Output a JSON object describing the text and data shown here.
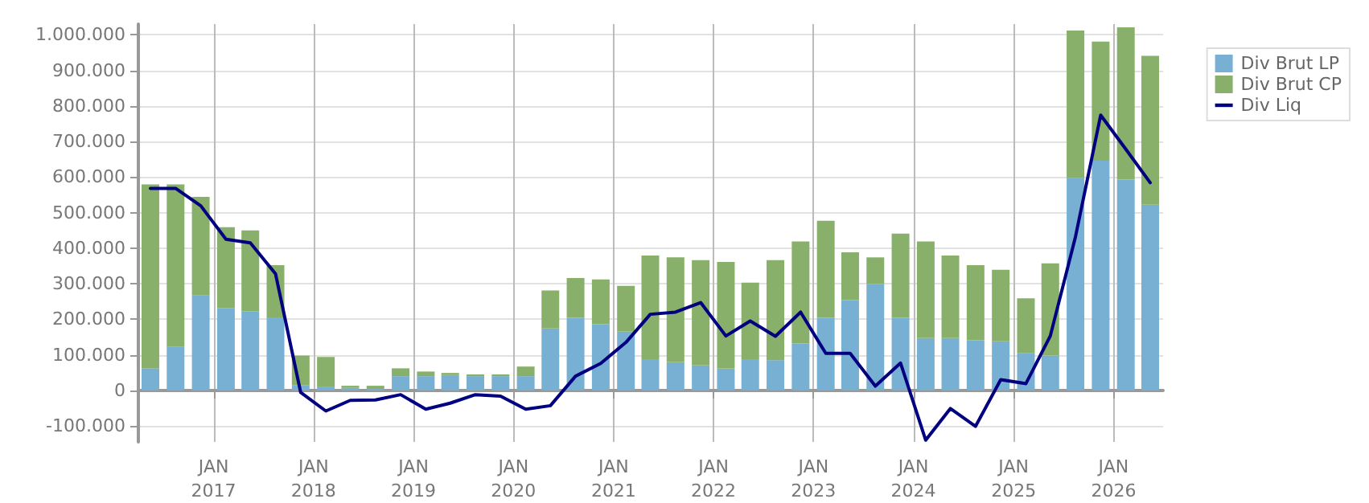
{
  "chart_data": {
    "type": "bar",
    "stacked": true,
    "legend": "top right",
    "grid": true,
    "marker": "none",
    "line_style": "solid",
    "x": [
      "2016-05-15",
      "2016-08-15",
      "2016-11-15",
      "2017-02-15",
      "2017-05-15",
      "2017-08-15",
      "2017-11-15",
      "2018-02-15",
      "2018-05-15",
      "2018-08-15",
      "2018-11-15",
      "2019-02-15",
      "2019-05-15",
      "2019-08-15",
      "2019-11-15",
      "2020-02-15",
      "2020-05-15",
      "2020-08-15",
      "2020-11-15",
      "2021-02-15",
      "2021-05-15",
      "2021-08-15",
      "2021-11-15",
      "2022-02-15",
      "2022-05-15",
      "2022-08-15",
      "2022-11-15",
      "2023-02-15",
      "2023-05-15",
      "2023-08-15",
      "2023-11-15",
      "2024-02-15",
      "2024-05-15",
      "2024-08-15",
      "2024-11-15",
      "2025-02-15",
      "2025-05-15",
      "2025-08-15",
      "2025-11-15",
      "2026-02-15",
      "2026-05-15"
    ],
    "xlim": [
      "2016-04-01",
      "2026-07-01"
    ],
    "xticks": [
      {
        "value": "2017-01-01",
        "label": "JAN\n2017"
      },
      {
        "value": "2018-01-01",
        "label": "JAN\n2018"
      },
      {
        "value": "2019-01-01",
        "label": "JAN\n2019"
      },
      {
        "value": "2020-01-01",
        "label": "JAN\n2020"
      },
      {
        "value": "2021-01-01",
        "label": "JAN\n2021"
      },
      {
        "value": "2022-01-01",
        "label": "JAN\n2022"
      },
      {
        "value": "2023-01-01",
        "label": "JAN\n2023"
      },
      {
        "value": "2024-01-01",
        "label": "JAN\n2024"
      },
      {
        "value": "2025-01-01",
        "label": "JAN\n2025"
      },
      {
        "value": "2026-01-01",
        "label": "JAN\n2026"
      }
    ],
    "ylim": [
      -145000,
      1030000
    ],
    "yticks": [
      {
        "value": -100000,
        "label": "-100.000"
      },
      0,
      {
        "value": 100000,
        "label": "100.000"
      },
      {
        "value": 200000,
        "label": "200.000"
      },
      {
        "value": 300000,
        "label": "300.000"
      },
      {
        "value": 400000,
        "label": "400.000"
      },
      {
        "value": 500000,
        "label": "500.000"
      },
      {
        "value": 600000,
        "label": "600.000"
      },
      {
        "value": 700000,
        "label": "700.000"
      },
      {
        "value": 800000,
        "label": "800.000"
      },
      {
        "value": 900000,
        "label": "900.000"
      },
      {
        "value": 1000000,
        "label": "1.000.000"
      }
    ],
    "series": [
      {
        "name": "Div Brut LP",
        "color": "#78b0d4",
        "values": [
          62000,
          122000,
          267000,
          232000,
          223000,
          205000,
          15000,
          9000,
          7000,
          4000,
          40000,
          40000,
          43000,
          40000,
          40000,
          40000,
          174000,
          204000,
          186000,
          165000,
          88000,
          79000,
          70000,
          61000,
          88000,
          85000,
          132000,
          204000,
          254000,
          299000,
          204000,
          147000,
          147000,
          141000,
          138000,
          104000,
          98000,
          597000,
          646000,
          593000,
          522000
        ]
      },
      {
        "name": "Div Brut CP",
        "color": "#88b06a",
        "values": [
          517000,
          457000,
          277000,
          227000,
          227000,
          147000,
          83000,
          85000,
          6000,
          9000,
          22000,
          13000,
          6000,
          5000,
          5000,
          27000,
          107000,
          112000,
          126000,
          129000,
          291000,
          295000,
          296000,
          300000,
          215000,
          281000,
          287000,
          273000,
          134000,
          75000,
          237000,
          272000,
          232000,
          211000,
          201000,
          155000,
          259000,
          415000,
          335000,
          428000,
          419000
        ]
      },
      {
        "name": "Div Liq",
        "type": "line",
        "color": "#000080",
        "values": [
          568000,
          568000,
          519000,
          425000,
          415000,
          328000,
          -6000,
          -58000,
          -28000,
          -27000,
          -12000,
          -53000,
          -36000,
          -12000,
          -16000,
          -53000,
          -43000,
          40000,
          76000,
          135000,
          214000,
          220000,
          247000,
          153000,
          195000,
          152000,
          220000,
          104000,
          104000,
          12000,
          77000,
          -140000,
          -51000,
          -101000,
          30000,
          19000,
          153000,
          432000,
          774000,
          678000,
          584000
        ]
      }
    ]
  }
}
